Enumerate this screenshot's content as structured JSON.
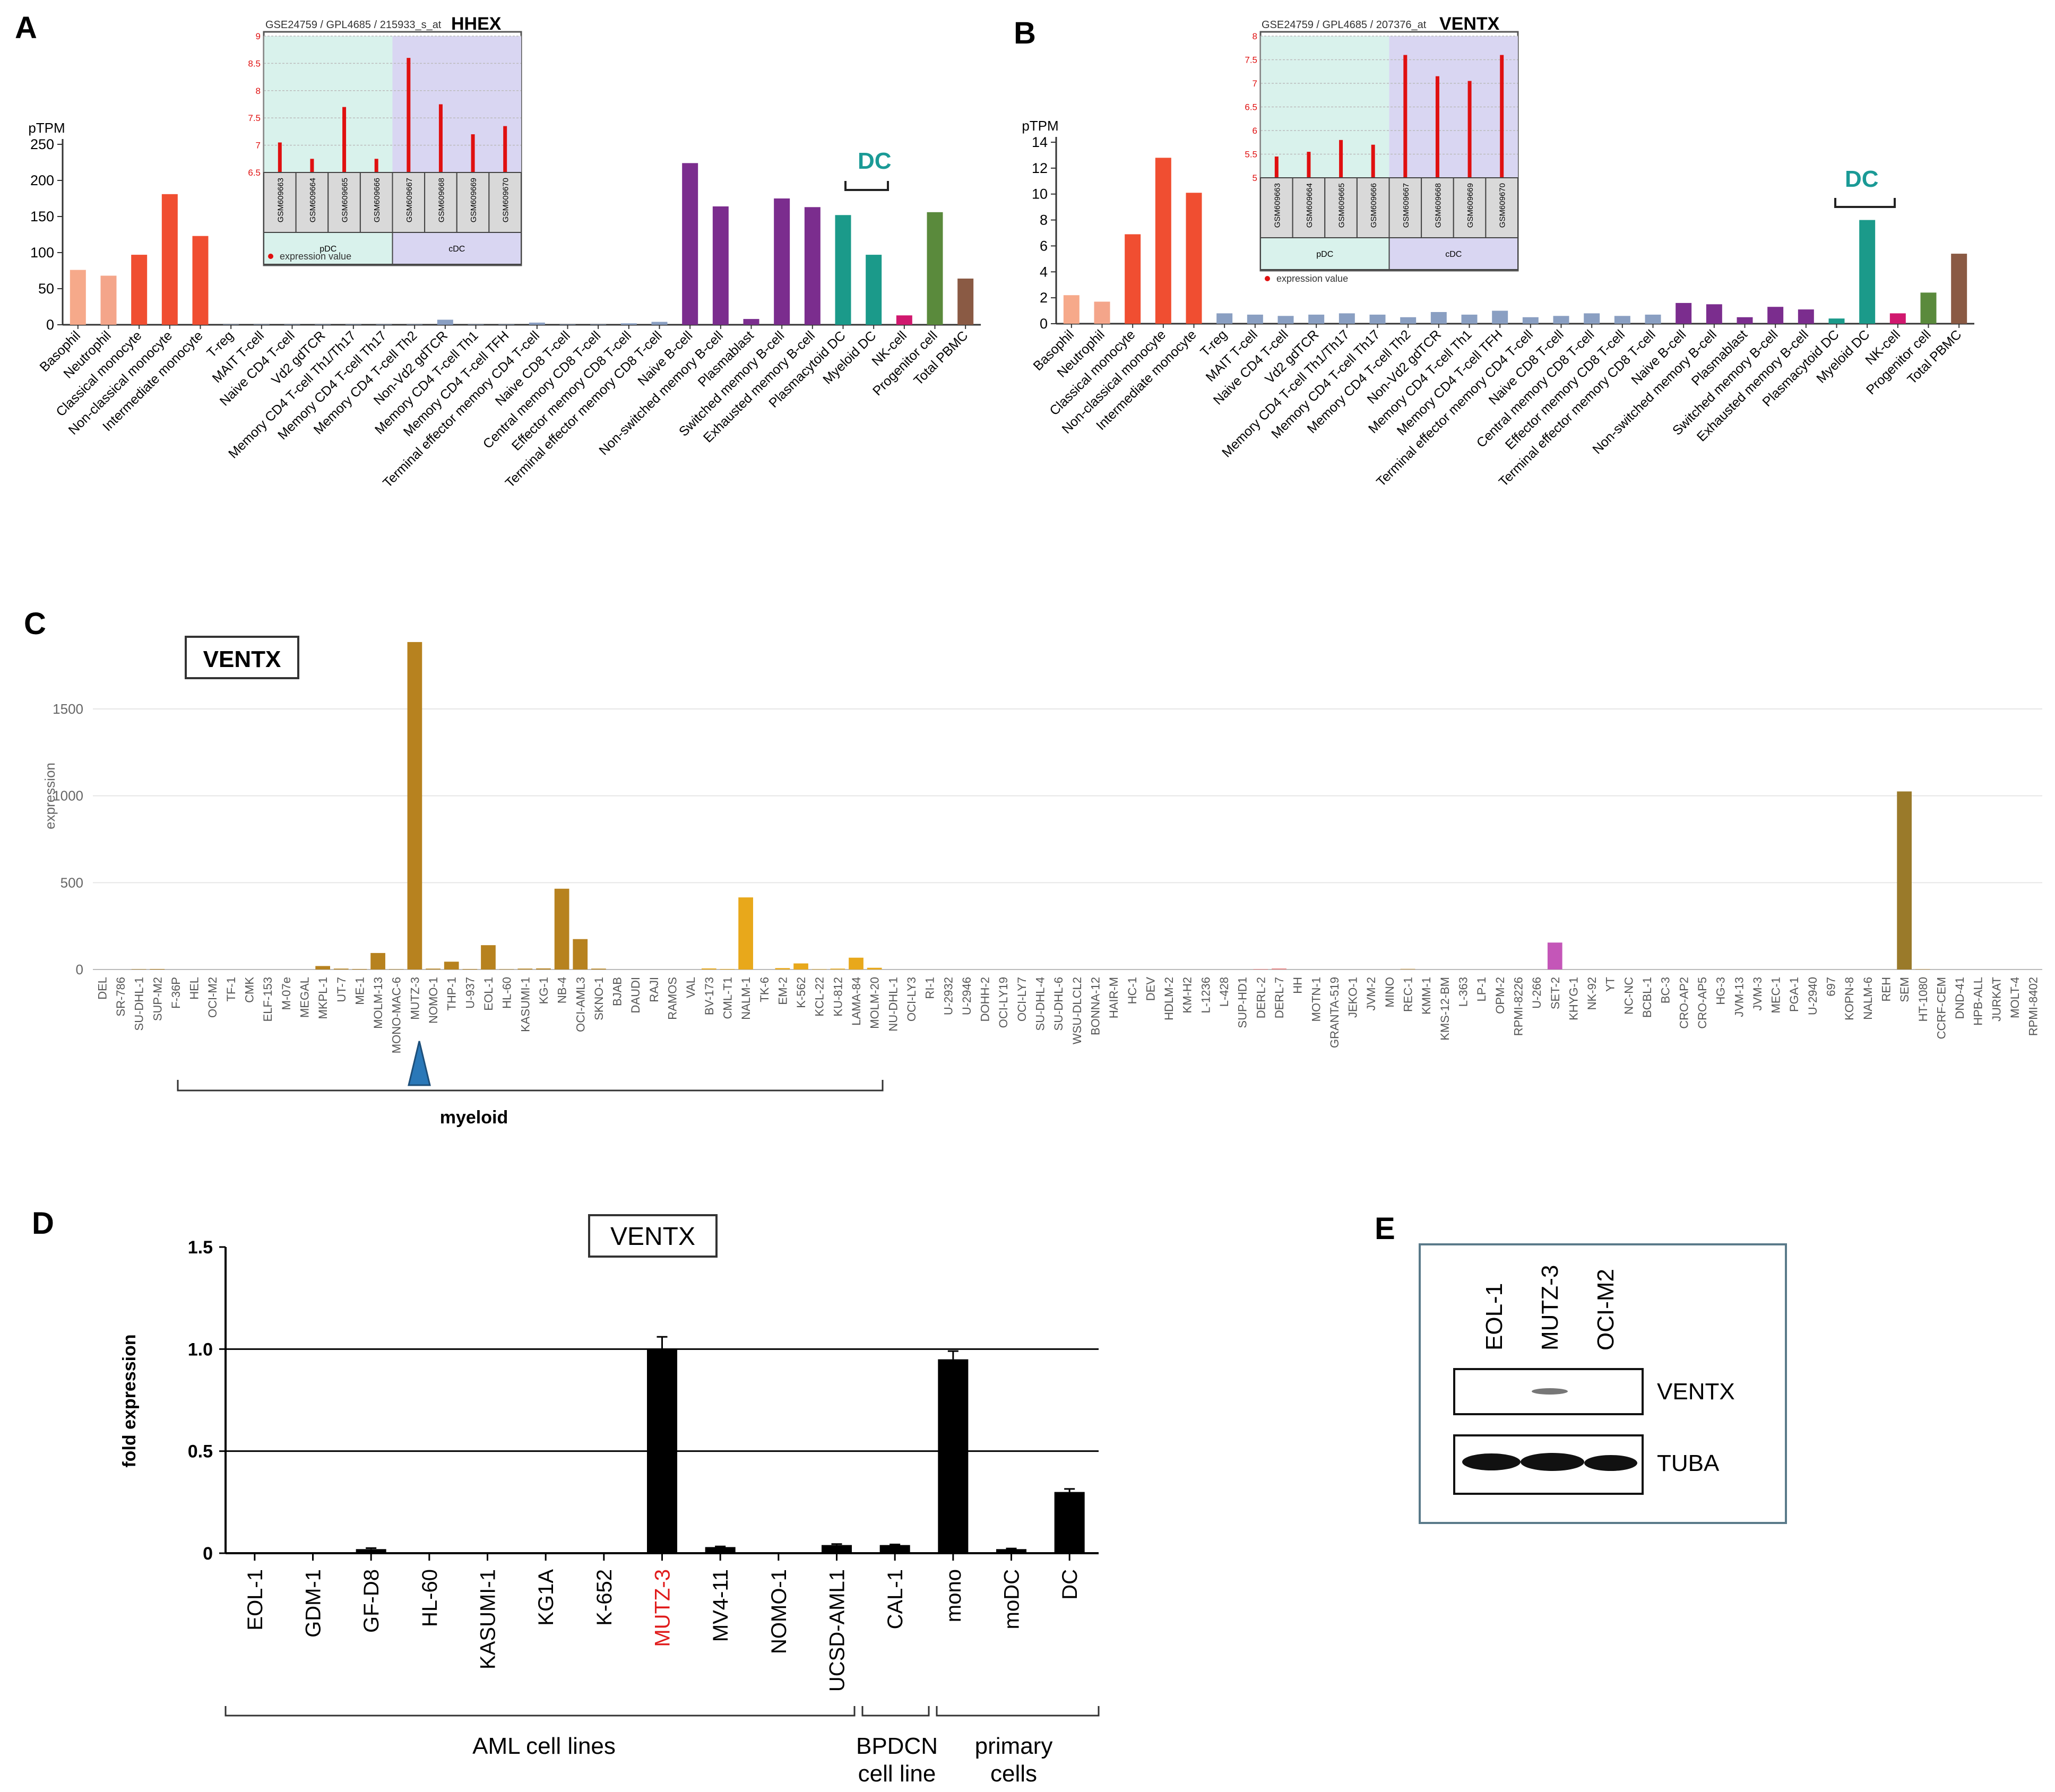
{
  "panels": {
    "A": {
      "letter": "A"
    },
    "B": {
      "letter": "B"
    },
    "C": {
      "letter": "C"
    },
    "D": {
      "letter": "D"
    },
    "E": {
      "letter": "E"
    }
  },
  "colors": {
    "basophil": "#f6a98a",
    "neutrophil": "#f4a58a",
    "monocyte": "#f04e31",
    "lymph_grey": "#8a9fc2",
    "bcell": "#7b2d8e",
    "dc": "#1b9a8a",
    "nk": "#d0186e",
    "progenitor": "#5a8a3c",
    "pbmc": "#8a5a44",
    "inset_pdc_bg": "#d9f2ec",
    "inset_cdc_bg": "#d9d6f2",
    "inset_bar": "#e01010",
    "c_myeloid": "#b7821f",
    "c_orange": "#e8a81b",
    "c_magenta": "#c456b8",
    "c_sem": "#9a7a2a",
    "c_marker": "#2a78b8",
    "d_bar": "#000000",
    "mutz3_red": "#e01b1b"
  },
  "chart_data": [
    {
      "id": "A",
      "type": "bar",
      "ylabel": "pTPM",
      "ylim": [
        0,
        250
      ],
      "yticks": [
        0,
        50,
        100,
        150,
        200,
        250
      ],
      "categories": [
        "Basophil",
        "Neutrophil",
        "Classical monocyte",
        "Non-classical monocyte",
        "Intermediate monocyte",
        "T-reg",
        "MAIT T-cell",
        "Naive CD4 T-cell",
        "Vd2 gdTCR",
        "Memory CD4 T-cell Th1/Th17",
        "Memory CD4 T-cell Th17",
        "Memory CD4 T-cell Th2",
        "Non-Vd2 gdTCR",
        "Memory CD4 T-cell Th1",
        "Memory CD4 T-cell TFH",
        "Terminal effector memory CD4 T-cell",
        "Naive CD8 T-cell",
        "Central memory CD8 T-cell",
        "Effector memory CD8 T-cell",
        "Terminal effector memory CD8 T-cell",
        "Naive B-cell",
        "Non-switched memory B-cell",
        "Plasmablast",
        "Switched memory B-cell",
        "Exhausted memory B-cell",
        "Plasmacytoid DC",
        "Myeloid DC",
        "NK-cell",
        "Progenitor cell",
        "Total PBMC"
      ],
      "values": [
        76,
        68,
        97,
        181,
        123,
        0.5,
        0.5,
        0.5,
        0.5,
        0.5,
        0.5,
        0.5,
        7,
        0.5,
        0.5,
        3,
        0.5,
        0.5,
        2,
        4,
        224,
        164,
        8,
        175,
        163,
        152,
        97,
        13,
        156,
        64
      ],
      "bar_colors": [
        "basophil",
        "neutrophil",
        "monocyte",
        "monocyte",
        "monocyte",
        "lymph_grey",
        "lymph_grey",
        "lymph_grey",
        "lymph_grey",
        "lymph_grey",
        "lymph_grey",
        "lymph_grey",
        "lymph_grey",
        "lymph_grey",
        "lymph_grey",
        "lymph_grey",
        "lymph_grey",
        "lymph_grey",
        "lymph_grey",
        "lymph_grey",
        "bcell",
        "bcell",
        "bcell",
        "bcell",
        "bcell",
        "dc",
        "dc",
        "nk",
        "progenitor",
        "pbmc"
      ],
      "bracket_label": "DC",
      "inset": {
        "source": "GSE24759 / GPL4685 / 215933_s_at",
        "gene": "HHEX",
        "yticks": [
          "9",
          "8.5",
          "8",
          "7.5",
          "7",
          "6.5"
        ],
        "ymin": 6.5,
        "ymax": 9,
        "samples": [
          "GSM609663",
          "GSM609664",
          "GSM609665",
          "GSM609666",
          "GSM609667",
          "GSM609668",
          "GSM609669",
          "GSM609670"
        ],
        "values": [
          7.05,
          6.75,
          7.7,
          6.75,
          8.6,
          7.75,
          7.2,
          7.35
        ],
        "groups": [
          "pDC",
          "cDC"
        ],
        "legend": "expression value"
      }
    },
    {
      "id": "B",
      "type": "bar",
      "ylabel": "pTPM",
      "ylim": [
        0,
        14
      ],
      "yticks": [
        0,
        2,
        4,
        6,
        8,
        10,
        12,
        14
      ],
      "categories": [
        "Basophil",
        "Neutrophil",
        "Classical monocyte",
        "Non-classical monocyte",
        "Intermediate monocyte",
        "T-reg",
        "MAIT T-cell",
        "Naive CD4 T-cell",
        "Vd2 gdTCR",
        "Memory CD4 T-cell Th1/Th17",
        "Memory CD4 T-cell Th17",
        "Memory CD4 T-cell Th2",
        "Non-Vd2 gdTCR",
        "Memory CD4 T-cell Th1",
        "Memory CD4 T-cell TFH",
        "Terminal effector memory CD4 T-cell",
        "Naive CD8 T-cell",
        "Central memory CD8 T-cell",
        "Effector memory CD8 T-cell",
        "Terminal effector memory CD8 T-cell",
        "Naive B-cell",
        "Non-switched memory B-cell",
        "Plasmablast",
        "Switched memory B-cell",
        "Exhausted memory B-cell",
        "Plasmacytoid DC",
        "Myeloid DC",
        "NK-cell",
        "Progenitor cell",
        "Total PBMC"
      ],
      "values": [
        2.2,
        1.7,
        6.9,
        12.8,
        10.1,
        0.8,
        0.7,
        0.6,
        0.7,
        0.8,
        0.7,
        0.5,
        0.9,
        0.7,
        1.0,
        0.5,
        0.6,
        0.8,
        0.6,
        0.7,
        1.6,
        1.5,
        0.5,
        1.3,
        1.1,
        0.4,
        8.0,
        0.8,
        2.4,
        5.4
      ],
      "bar_colors": [
        "basophil",
        "neutrophil",
        "monocyte",
        "monocyte",
        "monocyte",
        "lymph_grey",
        "lymph_grey",
        "lymph_grey",
        "lymph_grey",
        "lymph_grey",
        "lymph_grey",
        "lymph_grey",
        "lymph_grey",
        "lymph_grey",
        "lymph_grey",
        "lymph_grey",
        "lymph_grey",
        "lymph_grey",
        "lymph_grey",
        "lymph_grey",
        "bcell",
        "bcell",
        "bcell",
        "bcell",
        "bcell",
        "dc",
        "dc",
        "nk",
        "progenitor",
        "pbmc"
      ],
      "bracket_label": "DC",
      "inset": {
        "source": "GSE24759 / GPL4685 / 207376_at",
        "gene": "VENTX",
        "yticks": [
          "8",
          "7.5",
          "7",
          "6.5",
          "6",
          "5.5",
          "5"
        ],
        "ymin": 5,
        "ymax": 8,
        "samples": [
          "GSM609663",
          "GSM609664",
          "GSM609665",
          "GSM609666",
          "GSM609667",
          "GSM609668",
          "GSM609669",
          "GSM609670"
        ],
        "values": [
          5.45,
          5.55,
          5.8,
          5.7,
          7.6,
          7.15,
          7.05,
          7.6
        ],
        "groups": [
          "pDC",
          "cDC"
        ],
        "legend": "expression value"
      }
    },
    {
      "id": "C",
      "type": "bar",
      "title": "VENTX",
      "ylabel": "expression",
      "ylim": [
        0,
        1900
      ],
      "yticks": [
        500,
        1000,
        1500
      ],
      "categories": [
        "DEL",
        "SR-786",
        "SU-DHL-1",
        "SUP-M2",
        "F-36P",
        "HEL",
        "OCI-M2",
        "TF-1",
        "CMK",
        "ELF-153",
        "M-07e",
        "MEGAL",
        "MKPL-1",
        "UT-7",
        "ME-1",
        "MOLM-13",
        "MONO-MAC-6",
        "MUTZ-3",
        "NOMO-1",
        "THP-1",
        "U-937",
        "EOL-1",
        "HL-60",
        "KASUMI-1",
        "KG-1",
        "NB-4",
        "OCI-AML3",
        "SKNO-1",
        "BJAB",
        "DAUDI",
        "RAJI",
        "RAMOS",
        "VAL",
        "BV-173",
        "CML-T1",
        "NALM-1",
        "TK-6",
        "EM-2",
        "K-562",
        "KCL-22",
        "KU-812",
        "LAMA-84",
        "MOLM-20",
        "NU-DHL-1",
        "OCI-LY3",
        "RI-1",
        "U-2932",
        "U-2946",
        "DOHH-2",
        "OCI-LY19",
        "OCI-LY7",
        "SU-DHL-4",
        "SU-DHL-6",
        "WSU-DLCL2",
        "BONNA-12",
        "HAIR-M",
        "HC-1",
        "DEV",
        "HDLM-2",
        "KM-H2",
        "L-1236",
        "L-428",
        "SUP-HD1",
        "DERL-2",
        "DERL-7",
        "HH",
        "MOTN-1",
        "GRANTA-519",
        "JEKO-1",
        "JVM-2",
        "MINO",
        "REC-1",
        "KMM-1",
        "KMS-12-BM",
        "L-363",
        "LP-1",
        "OPM-2",
        "RPMI-8226",
        "U-266",
        "SET-2",
        "KHYG-1",
        "NK-92",
        "YT",
        "NC-NC",
        "BCBL-1",
        "BC-3",
        "CRO-AP2",
        "CRO-AP5",
        "HG-3",
        "JVM-13",
        "JVM-3",
        "MEC-1",
        "PGA-1",
        "U-2940",
        "697",
        "KOPN-8",
        "NALM-6",
        "REH",
        "SEM",
        "HT-1080",
        "CCRF-CEM",
        "DND-41",
        "HPB-ALL",
        "JURKAT",
        "MOLT-4",
        "RPMI-8402"
      ],
      "values": [
        0,
        0,
        2,
        3,
        0,
        0,
        0,
        0,
        0,
        0,
        0,
        0,
        20,
        5,
        3,
        95,
        2,
        1885,
        5,
        45,
        3,
        140,
        2,
        5,
        6,
        465,
        175,
        5,
        0,
        0,
        0,
        0,
        0,
        6,
        3,
        415,
        0,
        8,
        35,
        2,
        5,
        68,
        10,
        0,
        0,
        0,
        0,
        0,
        0,
        0,
        0,
        0,
        0,
        0,
        0,
        0,
        0,
        0,
        0,
        0,
        0,
        0,
        0,
        3,
        6,
        0,
        0,
        0,
        0,
        0,
        0,
        4,
        0,
        0,
        0,
        0,
        0,
        0,
        0,
        155,
        0,
        0,
        0,
        0,
        0,
        0,
        0,
        0,
        0,
        0,
        0,
        0,
        0,
        0,
        0,
        0,
        0,
        0,
        1025,
        3,
        0,
        0,
        0,
        0,
        0,
        0
      ],
      "bar_colors": "see script",
      "group_label": "myeloid",
      "marker_at": "MUTZ-3"
    },
    {
      "id": "D",
      "type": "bar",
      "title": "VENTX",
      "ylabel": "fold expression",
      "ylim": [
        0,
        1.5
      ],
      "yticks": [
        "0",
        "0.5",
        "1.0",
        "1.5"
      ],
      "categories": [
        "EOL-1",
        "GDM-1",
        "GF-D8",
        "HL-60",
        "KASUMI-1",
        "KG1A",
        "K-652",
        "MUTZ-3",
        "MV4-11",
        "NOMO-1",
        "UCSD-AML1",
        "CAL-1",
        "mono",
        "moDC",
        "DC"
      ],
      "values": [
        0,
        0,
        0.02,
        0,
        0,
        0,
        0,
        1.0,
        0.03,
        0,
        0.04,
        0.04,
        0.95,
        0.02,
        0.3
      ],
      "errors": [
        0,
        0,
        0.005,
        0,
        0,
        0,
        0,
        0.06,
        0.003,
        0,
        0.005,
        0.003,
        0.04,
        0.003,
        0.015
      ],
      "highlight": "MUTZ-3",
      "groups": [
        {
          "label": "AML cell lines"
        },
        {
          "label": "BPDCN cell line"
        },
        {
          "label": "primary cells"
        }
      ]
    }
  ],
  "western": {
    "lanes": [
      "EOL-1",
      "MUTZ-3",
      "OCI-M2"
    ],
    "rows": [
      "VENTX",
      "TUBA"
    ]
  }
}
